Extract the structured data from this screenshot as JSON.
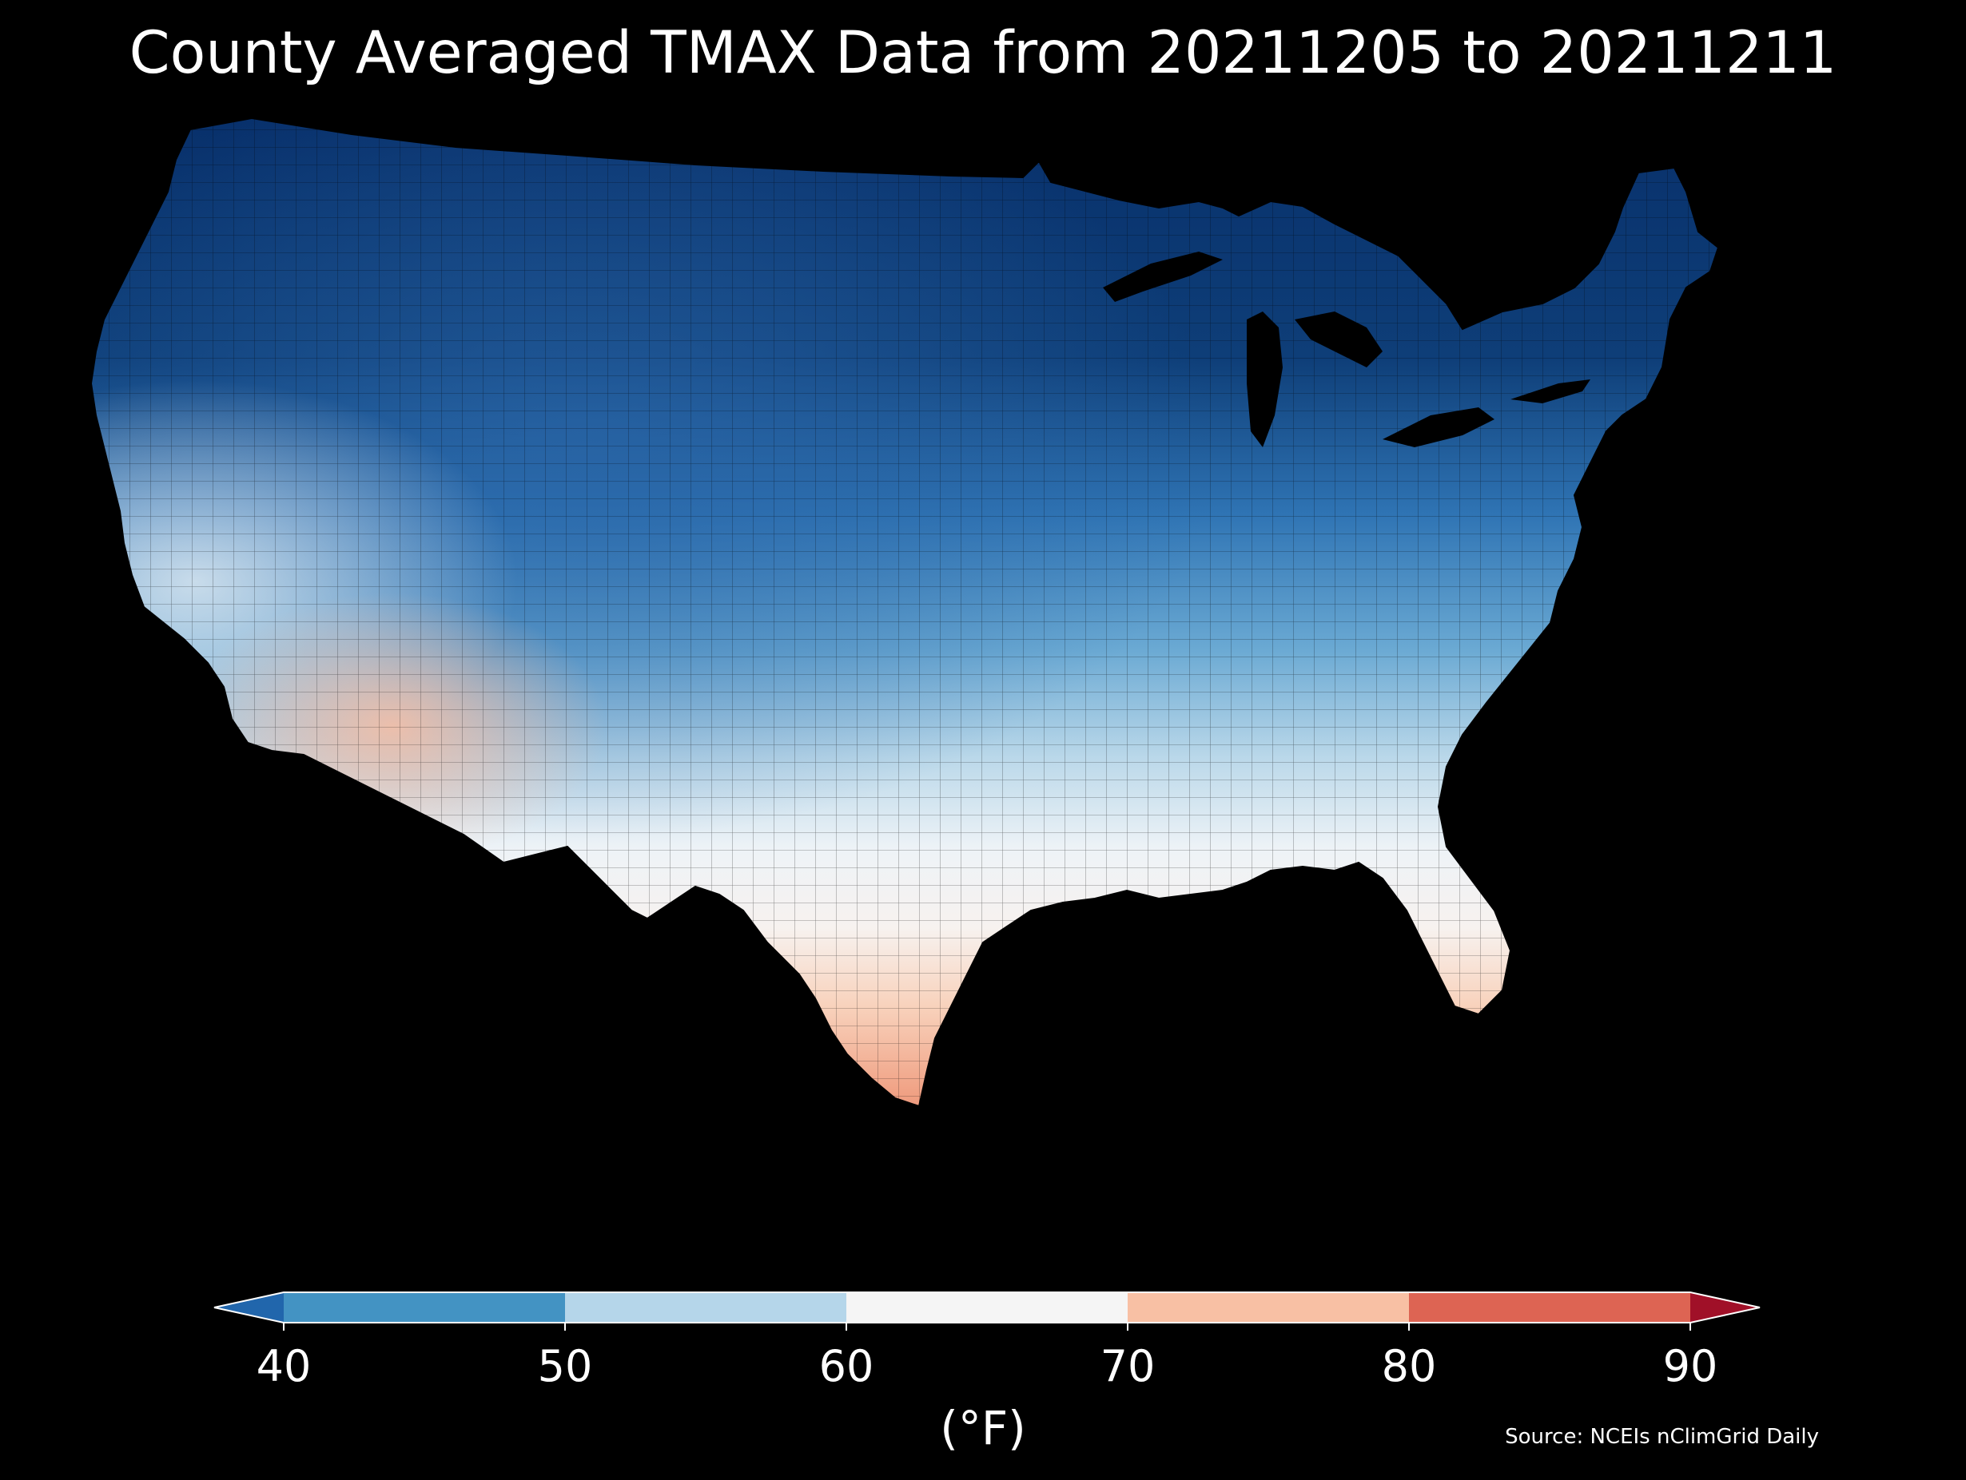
{
  "title": "County Averaged TMAX Data from 20211205 to 20211211",
  "colorbar": {
    "label": "(°F)",
    "ticks": [
      "40",
      "50",
      "60",
      "70",
      "80",
      "90"
    ],
    "tick_values": [
      40,
      50,
      60,
      70,
      80,
      90
    ],
    "range": [
      40,
      90
    ],
    "extend": "both",
    "bins": [
      {
        "from": null,
        "to": 40,
        "color": "#2166ac"
      },
      {
        "from": 40,
        "to": 50,
        "color": "#4393c3"
      },
      {
        "from": 50,
        "to": 60,
        "color": "#b5d6ea"
      },
      {
        "from": 60,
        "to": 70,
        "color": "#f5f5f5"
      },
      {
        "from": 70,
        "to": 80,
        "color": "#f8c0a4"
      },
      {
        "from": 80,
        "to": 90,
        "color": "#dd6453"
      },
      {
        "from": 90,
        "to": null,
        "color": "#a01028"
      }
    ]
  },
  "source": "Source: NCEIs nClimGrid Daily",
  "map": {
    "region": "Contiguous United States counties",
    "variable": "TMAX",
    "units": "°F",
    "colormap": "RdBu_r",
    "background": "#000000",
    "county_border_color": "#000000"
  }
}
